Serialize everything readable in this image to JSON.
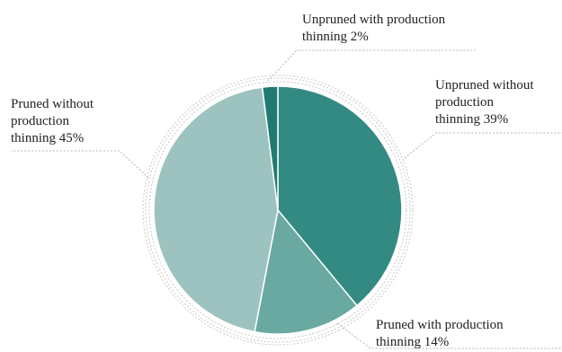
{
  "chart_data": {
    "type": "pie",
    "start_angle_deg": 0,
    "direction": "clockwise",
    "slices": [
      {
        "label_lines": [
          "Unpruned without",
          "production",
          "thinning 39%"
        ],
        "value": 39,
        "color": "#338a82"
      },
      {
        "label_lines": [
          "Pruned with production",
          "thinning 14%"
        ],
        "value": 14,
        "color": "#6aa8a2"
      },
      {
        "label_lines": [
          "Pruned without",
          "production",
          "thinning 45%"
        ],
        "value": 45,
        "color": "#9dc3c1"
      },
      {
        "label_lines": [
          "Unpruned with production",
          "thinning  2%"
        ],
        "value": 2,
        "color": "#1f7a72"
      }
    ],
    "legend": "none",
    "leader_line_color": "#b5b5b5",
    "ring_color": "#c8c8c8"
  }
}
